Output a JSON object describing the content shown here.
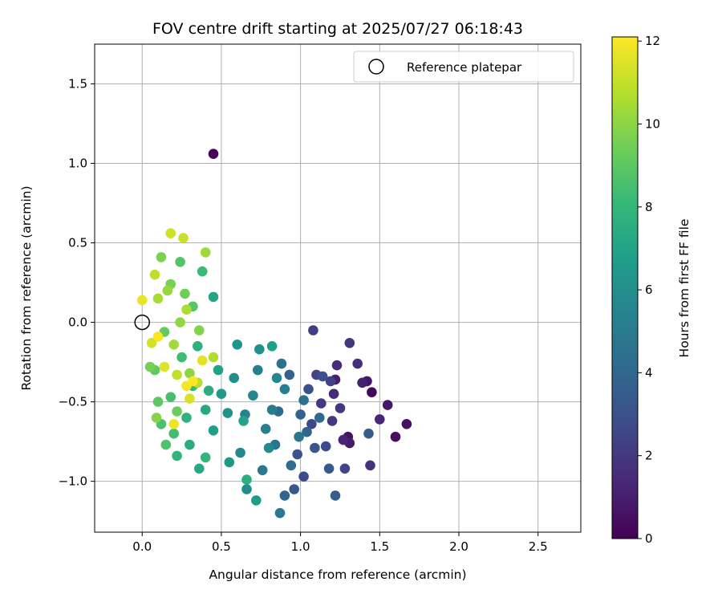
{
  "chart_data": {
    "type": "scatter",
    "title": "FOV centre drift starting at 2025/07/27 06:18:43",
    "xlabel": "Angular distance from reference (arcmin)",
    "ylabel": "Rotation from reference (arcmin)",
    "xlim": [
      -0.3,
      2.77
    ],
    "ylim": [
      -1.32,
      1.75
    ],
    "x_ticks": [
      0.0,
      0.5,
      1.0,
      1.5,
      2.0,
      2.5
    ],
    "x_tick_labels": [
      "0.0",
      "0.5",
      "1.0",
      "1.5",
      "2.0",
      "2.5"
    ],
    "y_ticks": [
      -1.0,
      -0.5,
      0.0,
      0.5,
      1.0,
      1.5
    ],
    "y_tick_labels": [
      "−1.0",
      "−0.5",
      "0.0",
      "0.5",
      "1.0",
      "1.5"
    ],
    "grid": true,
    "legend": {
      "position": "top-right",
      "entries": [
        {
          "label": "Reference platepar",
          "marker": "open-circle"
        }
      ]
    },
    "reference_point": {
      "x": 0.0,
      "y": 0.0
    },
    "colorbar": {
      "label": "Hours from first FF file",
      "colormap": "viridis",
      "range": [
        0,
        12.1
      ],
      "ticks": [
        0,
        2,
        4,
        6,
        8,
        10,
        12
      ],
      "tick_labels": [
        "0",
        "2",
        "4",
        "6",
        "8",
        "10",
        "12"
      ]
    },
    "colormap_stops": [
      "#440154",
      "#482878",
      "#3e4a89",
      "#31688e",
      "#26828e",
      "#1f9e89",
      "#35b779",
      "#6ece58",
      "#b5de2b",
      "#fde725"
    ],
    "points": [
      [
        0.45,
        1.06,
        0.1
      ],
      [
        1.45,
        -0.44,
        0.2
      ],
      [
        1.6,
        -0.72,
        0.4
      ],
      [
        1.67,
        -0.64,
        0.5
      ],
      [
        1.3,
        -0.72,
        0.6
      ],
      [
        1.42,
        -0.37,
        0.7
      ],
      [
        1.55,
        -0.52,
        0.8
      ],
      [
        1.31,
        -0.76,
        0.9
      ],
      [
        1.22,
        -0.36,
        1.0
      ],
      [
        1.39,
        -0.38,
        1.1
      ],
      [
        1.27,
        -0.74,
        1.2
      ],
      [
        1.5,
        -0.61,
        1.3
      ],
      [
        1.21,
        -0.45,
        1.4
      ],
      [
        1.23,
        -0.27,
        1.5
      ],
      [
        1.36,
        -0.26,
        1.6
      ],
      [
        1.44,
        -0.9,
        1.7
      ],
      [
        1.31,
        -0.13,
        1.8
      ],
      [
        1.25,
        -0.54,
        1.9
      ],
      [
        1.2,
        -0.62,
        2.0
      ],
      [
        1.13,
        -0.51,
        2.1
      ],
      [
        1.08,
        -0.05,
        2.2
      ],
      [
        1.19,
        -0.37,
        2.3
      ],
      [
        1.1,
        -0.33,
        2.4
      ],
      [
        1.28,
        -0.92,
        2.5
      ],
      [
        1.07,
        -0.64,
        2.6
      ],
      [
        1.16,
        -0.78,
        2.7
      ],
      [
        1.02,
        -0.97,
        2.8
      ],
      [
        1.14,
        -0.34,
        2.9
      ],
      [
        1.05,
        -0.42,
        3.0
      ],
      [
        0.98,
        -0.83,
        3.1
      ],
      [
        1.09,
        -0.79,
        3.2
      ],
      [
        0.96,
        -1.05,
        3.3
      ],
      [
        1.18,
        -0.92,
        3.4
      ],
      [
        1.43,
        -0.7,
        3.5
      ],
      [
        1.22,
        -1.09,
        3.6
      ],
      [
        0.93,
        -0.33,
        3.7
      ],
      [
        1.0,
        -0.58,
        3.8
      ],
      [
        0.9,
        -1.09,
        3.9
      ],
      [
        1.04,
        -0.69,
        4.0
      ],
      [
        0.86,
        -0.56,
        4.1
      ],
      [
        1.12,
        -0.6,
        4.2
      ],
      [
        0.94,
        -0.9,
        4.3
      ],
      [
        0.88,
        -0.26,
        4.4
      ],
      [
        1.02,
        -0.49,
        4.5
      ],
      [
        0.84,
        -0.77,
        4.6
      ],
      [
        0.99,
        -0.72,
        4.7
      ],
      [
        0.76,
        -0.93,
        4.8
      ],
      [
        0.87,
        -1.2,
        4.9
      ],
      [
        0.82,
        -0.55,
        5.0
      ],
      [
        0.9,
        -0.42,
        5.1
      ],
      [
        0.73,
        -0.3,
        5.2
      ],
      [
        0.78,
        -0.67,
        5.3
      ],
      [
        0.65,
        -0.58,
        5.4
      ],
      [
        0.7,
        -0.46,
        5.5
      ],
      [
        0.85,
        -0.35,
        5.6
      ],
      [
        0.62,
        -0.82,
        5.7
      ],
      [
        0.8,
        -0.79,
        5.8
      ],
      [
        0.66,
        -1.05,
        5.9
      ],
      [
        0.58,
        -0.35,
        6.0
      ],
      [
        0.74,
        -0.17,
        6.1
      ],
      [
        0.54,
        -0.57,
        6.2
      ],
      [
        0.6,
        -0.14,
        6.3
      ],
      [
        0.55,
        -0.88,
        6.4
      ],
      [
        0.5,
        -0.45,
        6.5
      ],
      [
        0.72,
        -1.12,
        6.6
      ],
      [
        0.82,
        -0.15,
        6.7
      ],
      [
        0.45,
        -0.68,
        6.8
      ],
      [
        0.48,
        -0.3,
        6.9
      ],
      [
        0.64,
        -0.62,
        7.0
      ],
      [
        0.45,
        0.16,
        7.1
      ],
      [
        0.4,
        -0.55,
        7.2
      ],
      [
        0.36,
        -0.92,
        7.3
      ],
      [
        0.3,
        -0.77,
        7.4
      ],
      [
        0.42,
        -0.43,
        7.5
      ],
      [
        0.66,
        -0.99,
        7.6
      ],
      [
        0.35,
        -0.15,
        7.7
      ],
      [
        0.28,
        -0.6,
        7.8
      ],
      [
        0.22,
        -0.84,
        7.9
      ],
      [
        0.4,
        -0.85,
        8.0
      ],
      [
        0.32,
        -0.4,
        8.1
      ],
      [
        0.38,
        0.32,
        8.2
      ],
      [
        0.25,
        -0.22,
        8.3
      ],
      [
        0.2,
        -0.7,
        8.4
      ],
      [
        0.18,
        -0.47,
        8.5
      ],
      [
        0.12,
        -0.64,
        8.6
      ],
      [
        0.15,
        -0.77,
        8.7
      ],
      [
        0.24,
        0.38,
        8.8
      ],
      [
        0.32,
        0.1,
        8.9
      ],
      [
        0.1,
        -0.5,
        9.0
      ],
      [
        0.08,
        -0.3,
        9.1
      ],
      [
        0.14,
        -0.06,
        9.2
      ],
      [
        0.22,
        -0.56,
        9.3
      ],
      [
        0.27,
        0.18,
        9.4
      ],
      [
        0.05,
        -0.28,
        9.5
      ],
      [
        0.18,
        0.24,
        9.6
      ],
      [
        0.12,
        0.41,
        9.7
      ],
      [
        0.36,
        -0.05,
        9.8
      ],
      [
        0.09,
        -0.6,
        9.9
      ],
      [
        0.3,
        -0.32,
        10.0
      ],
      [
        0.24,
        0.0,
        10.1
      ],
      [
        0.16,
        0.2,
        10.2
      ],
      [
        0.4,
        0.44,
        10.3
      ],
      [
        0.2,
        -0.14,
        10.4
      ],
      [
        0.1,
        0.15,
        10.5
      ],
      [
        0.28,
        0.08,
        10.6
      ],
      [
        0.45,
        -0.22,
        10.7
      ],
      [
        0.35,
        -0.38,
        10.8
      ],
      [
        0.08,
        0.3,
        10.9
      ],
      [
        0.22,
        -0.33,
        11.0
      ],
      [
        0.26,
        0.53,
        11.1
      ],
      [
        0.18,
        0.56,
        11.2
      ],
      [
        0.06,
        -0.13,
        11.3
      ],
      [
        0.3,
        -0.48,
        11.4
      ],
      [
        0.14,
        -0.28,
        11.5
      ],
      [
        0.38,
        -0.24,
        11.6
      ],
      [
        0.0,
        0.14,
        11.7
      ],
      [
        0.2,
        -0.64,
        11.8
      ],
      [
        0.28,
        -0.4,
        11.9
      ],
      [
        0.1,
        -0.09,
        12.0
      ],
      [
        0.32,
        -0.37,
        12.1
      ]
    ]
  }
}
